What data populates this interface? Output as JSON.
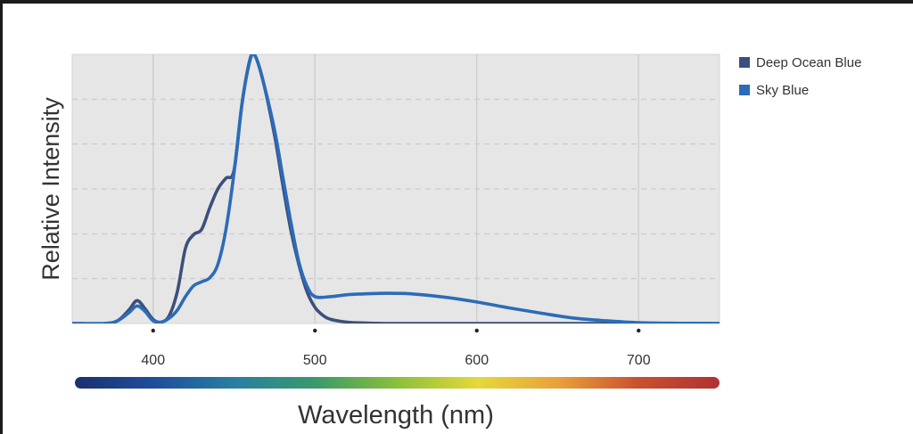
{
  "chart_data": {
    "type": "line",
    "xlabel": "Wavelength (nm)",
    "ylabel": "Relative Intensity",
    "xlim": [
      350,
      750
    ],
    "ylim": [
      0,
      1
    ],
    "x_ticks": [
      400,
      500,
      600,
      700
    ],
    "grid": true,
    "legend_position": "right",
    "series": [
      {
        "name": "Deep Ocean Blue",
        "color": "#3d4f7c",
        "x": [
          350,
          370,
          378,
          385,
          390,
          395,
          400,
          405,
          410,
          415,
          420,
          425,
          430,
          435,
          440,
          445,
          450,
          455,
          460,
          463,
          468,
          475,
          480,
          485,
          490,
          495,
          500,
          505,
          510,
          520,
          530,
          550,
          600,
          650,
          700,
          750
        ],
        "y": [
          0,
          0,
          0.01,
          0.05,
          0.085,
          0.055,
          0.015,
          0.005,
          0.03,
          0.12,
          0.28,
          0.33,
          0.35,
          0.43,
          0.5,
          0.54,
          0.57,
          0.82,
          0.985,
          0.995,
          0.9,
          0.7,
          0.52,
          0.35,
          0.22,
          0.12,
          0.06,
          0.03,
          0.015,
          0.005,
          0.002,
          0,
          0,
          0,
          0,
          0
        ]
      },
      {
        "name": "Sky Blue",
        "color": "#2b6cb8",
        "x": [
          350,
          370,
          378,
          385,
          390,
          395,
          400,
          405,
          410,
          415,
          420,
          425,
          430,
          435,
          440,
          445,
          450,
          455,
          460,
          463,
          468,
          475,
          480,
          485,
          490,
          495,
          500,
          510,
          520,
          530,
          540,
          550,
          560,
          580,
          600,
          620,
          640,
          660,
          680,
          700,
          720,
          750
        ],
        "y": [
          0,
          0,
          0.01,
          0.04,
          0.065,
          0.045,
          0.01,
          0.005,
          0.02,
          0.05,
          0.1,
          0.14,
          0.155,
          0.17,
          0.22,
          0.35,
          0.56,
          0.82,
          0.98,
          0.995,
          0.9,
          0.72,
          0.55,
          0.38,
          0.23,
          0.14,
          0.1,
          0.1,
          0.107,
          0.11,
          0.112,
          0.112,
          0.11,
          0.098,
          0.08,
          0.058,
          0.038,
          0.02,
          0.01,
          0.003,
          0.001,
          0
        ]
      }
    ]
  },
  "legend": {
    "items": [
      {
        "label": "Deep Ocean Blue",
        "color": "#3d4f7c"
      },
      {
        "label": "Sky Blue",
        "color": "#2b6cb8"
      }
    ]
  },
  "colors": {
    "plot_background": "#e6e6e6",
    "grid_solid": "#cfcfcf",
    "grid_dashed": "#cccccc",
    "spectrum": [
      "#1e2f6e",
      "#1f4f9a",
      "#2a7fa0",
      "#3a9a6a",
      "#8cbf3a",
      "#e4d93a",
      "#e8a13a",
      "#c8502f",
      "#b03232"
    ]
  }
}
